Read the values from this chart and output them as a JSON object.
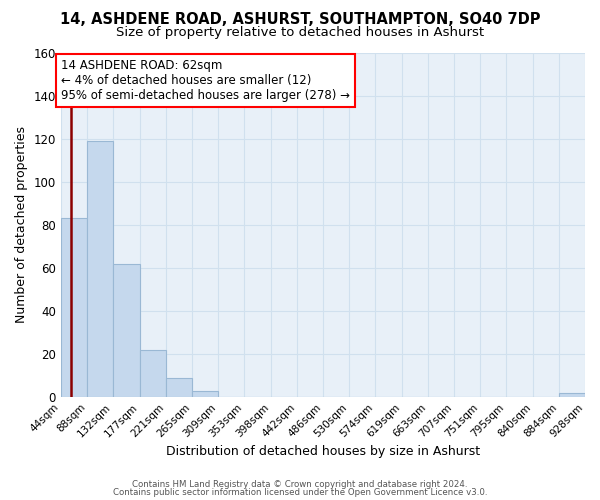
{
  "title": "14, ASHDENE ROAD, ASHURST, SOUTHAMPTON, SO40 7DP",
  "subtitle": "Size of property relative to detached houses in Ashurst",
  "xlabel": "Distribution of detached houses by size in Ashurst",
  "ylabel": "Number of detached properties",
  "bar_edges": [
    44,
    88,
    132,
    177,
    221,
    265,
    309,
    353,
    398,
    442,
    486,
    530,
    574,
    619,
    663,
    707,
    751,
    795,
    840,
    884,
    928
  ],
  "bar_heights": [
    83,
    119,
    62,
    22,
    9,
    3,
    0,
    0,
    0,
    0,
    0,
    0,
    0,
    0,
    0,
    0,
    0,
    0,
    0,
    2
  ],
  "bar_color": "#c5d8ed",
  "bar_edge_color": "#9ab8d4",
  "red_line_x": 62,
  "annotation_line1": "14 ASHDENE ROAD: 62sqm",
  "annotation_line2": "← 4% of detached houses are smaller (12)",
  "annotation_line3": "95% of semi-detached houses are larger (278) →",
  "ylim": [
    0,
    160
  ],
  "yticks": [
    0,
    20,
    40,
    60,
    80,
    100,
    120,
    140,
    160
  ],
  "tick_labels": [
    "44sqm",
    "88sqm",
    "132sqm",
    "177sqm",
    "221sqm",
    "265sqm",
    "309sqm",
    "353sqm",
    "398sqm",
    "442sqm",
    "486sqm",
    "530sqm",
    "574sqm",
    "619sqm",
    "663sqm",
    "707sqm",
    "751sqm",
    "795sqm",
    "840sqm",
    "884sqm",
    "928sqm"
  ],
  "footer1": "Contains HM Land Registry data © Crown copyright and database right 2024.",
  "footer2": "Contains public sector information licensed under the Open Government Licence v3.0.",
  "background_color": "#ffffff",
  "grid_color": "#d0e0ee",
  "title_fontsize": 10.5,
  "subtitle_fontsize": 9.5,
  "annotation_fontsize": 8.5
}
